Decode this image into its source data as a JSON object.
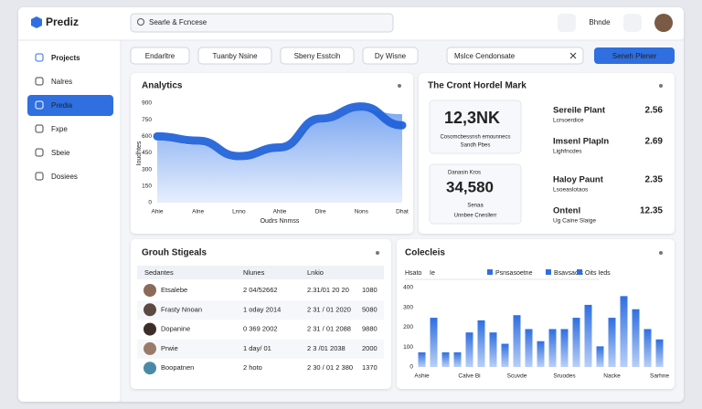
{
  "app": {
    "logo": "Prediz",
    "search": "Searle & Fcncese",
    "user": "Bhnde"
  },
  "sidebar": {
    "items": [
      {
        "label": "Projects",
        "active": false
      },
      {
        "label": "Nalres",
        "active": false
      },
      {
        "label": "Predia",
        "active": true
      },
      {
        "label": "Fxpe",
        "active": false
      },
      {
        "label": "Sbeie",
        "active": false
      },
      {
        "label": "Dosiees",
        "active": false
      }
    ]
  },
  "filters": {
    "buttons": [
      "Endarltre",
      "Tuanby Nsine",
      "Sbeny Esstcih",
      "Dy Wisne"
    ],
    "input": "Mslce Cendonsate",
    "action": "Seneh Plener"
  },
  "chart_data": [
    {
      "type": "area",
      "title": "Analytics",
      "x_label": "Oudrs Nnmss",
      "y_label": "Ioudhtes",
      "categories": [
        "Ahie",
        "Alne",
        "Lnno",
        "Ahtie",
        "Dlre",
        "Nons",
        "Dhat"
      ],
      "series": [
        {
          "color": "#6f9ff0",
          "values": [
            560,
            520,
            380,
            470,
            720,
            840,
            800
          ]
        },
        {
          "color": "#1d5fd8",
          "values": [
            600,
            560,
            420,
            500,
            760,
            870,
            700
          ]
        }
      ],
      "ylim": [
        0,
        900
      ],
      "yticks": [
        0,
        150,
        300,
        450,
        600,
        750,
        900
      ]
    },
    {
      "type": "bar",
      "title": "Colecleis",
      "tabs": [
        "Hsato",
        "Ie",
        "Psnsasoetne",
        "Bsavsacts",
        "Oits Ieds"
      ],
      "categories": [
        "Ashie",
        null,
        null,
        null,
        "Calve Bi",
        null,
        null,
        null,
        "Scuvde",
        null,
        null,
        null,
        "Sruodes",
        null,
        null,
        null,
        "Nacke",
        null,
        null,
        null,
        "Sarhne"
      ],
      "values": [
        74,
        248,
        74,
        74,
        174,
        235,
        174,
        117,
        261,
        191,
        130,
        191,
        191,
        248,
        313,
        104,
        248,
        357,
        291,
        191,
        139
      ],
      "color": "#2f6fe0",
      "ylim": [
        0,
        400
      ],
      "yticks": [
        0,
        100,
        200,
        300,
        400
      ]
    }
  ],
  "market": {
    "title": "The Cront Hordel Mark",
    "card1": {
      "value": "12,3NK",
      "line1": "Cosomcbessnsh emounnecs",
      "line2": "Sandh Pbes"
    },
    "card2": {
      "label": "Danasin Kros",
      "value": "34,580",
      "line1": "Senaa",
      "line2": "Unnbee Cnesllerr"
    },
    "list": [
      {
        "name": "Sereile Plant",
        "sub": "Lcrsoerdice",
        "value": "2.56"
      },
      {
        "name": "Imsenl Plapln",
        "sub": "Lighfncdes",
        "value": "2.69"
      },
      {
        "name": "Haloy Paunt",
        "sub": "Lsoeaslotaos",
        "value": "2.35"
      },
      {
        "name": "Ontenl",
        "sub": "Ug Caine Slaige",
        "value": "12.35"
      }
    ]
  },
  "table": {
    "title": "Grouh Stigeals",
    "headers": [
      "Sedantes",
      "Nlunes",
      "Lnkio"
    ],
    "rows": [
      [
        "Etsalebe",
        "2 04/52662",
        "2.31/01 20 20",
        "1080"
      ],
      [
        "Frasty Nnoan",
        "1 oday 2014",
        "2 31 / 01 2020",
        "5080"
      ],
      [
        "Dopanine",
        "0 369 2002",
        "2 31 / 01 2088",
        "9880"
      ],
      [
        "Prwie",
        "1 day/ 01",
        "2 3 /01 2038",
        "2000"
      ],
      [
        "Boopatnen",
        "2 hoto",
        "2 30 / 01 2 380",
        "1370"
      ]
    ]
  }
}
